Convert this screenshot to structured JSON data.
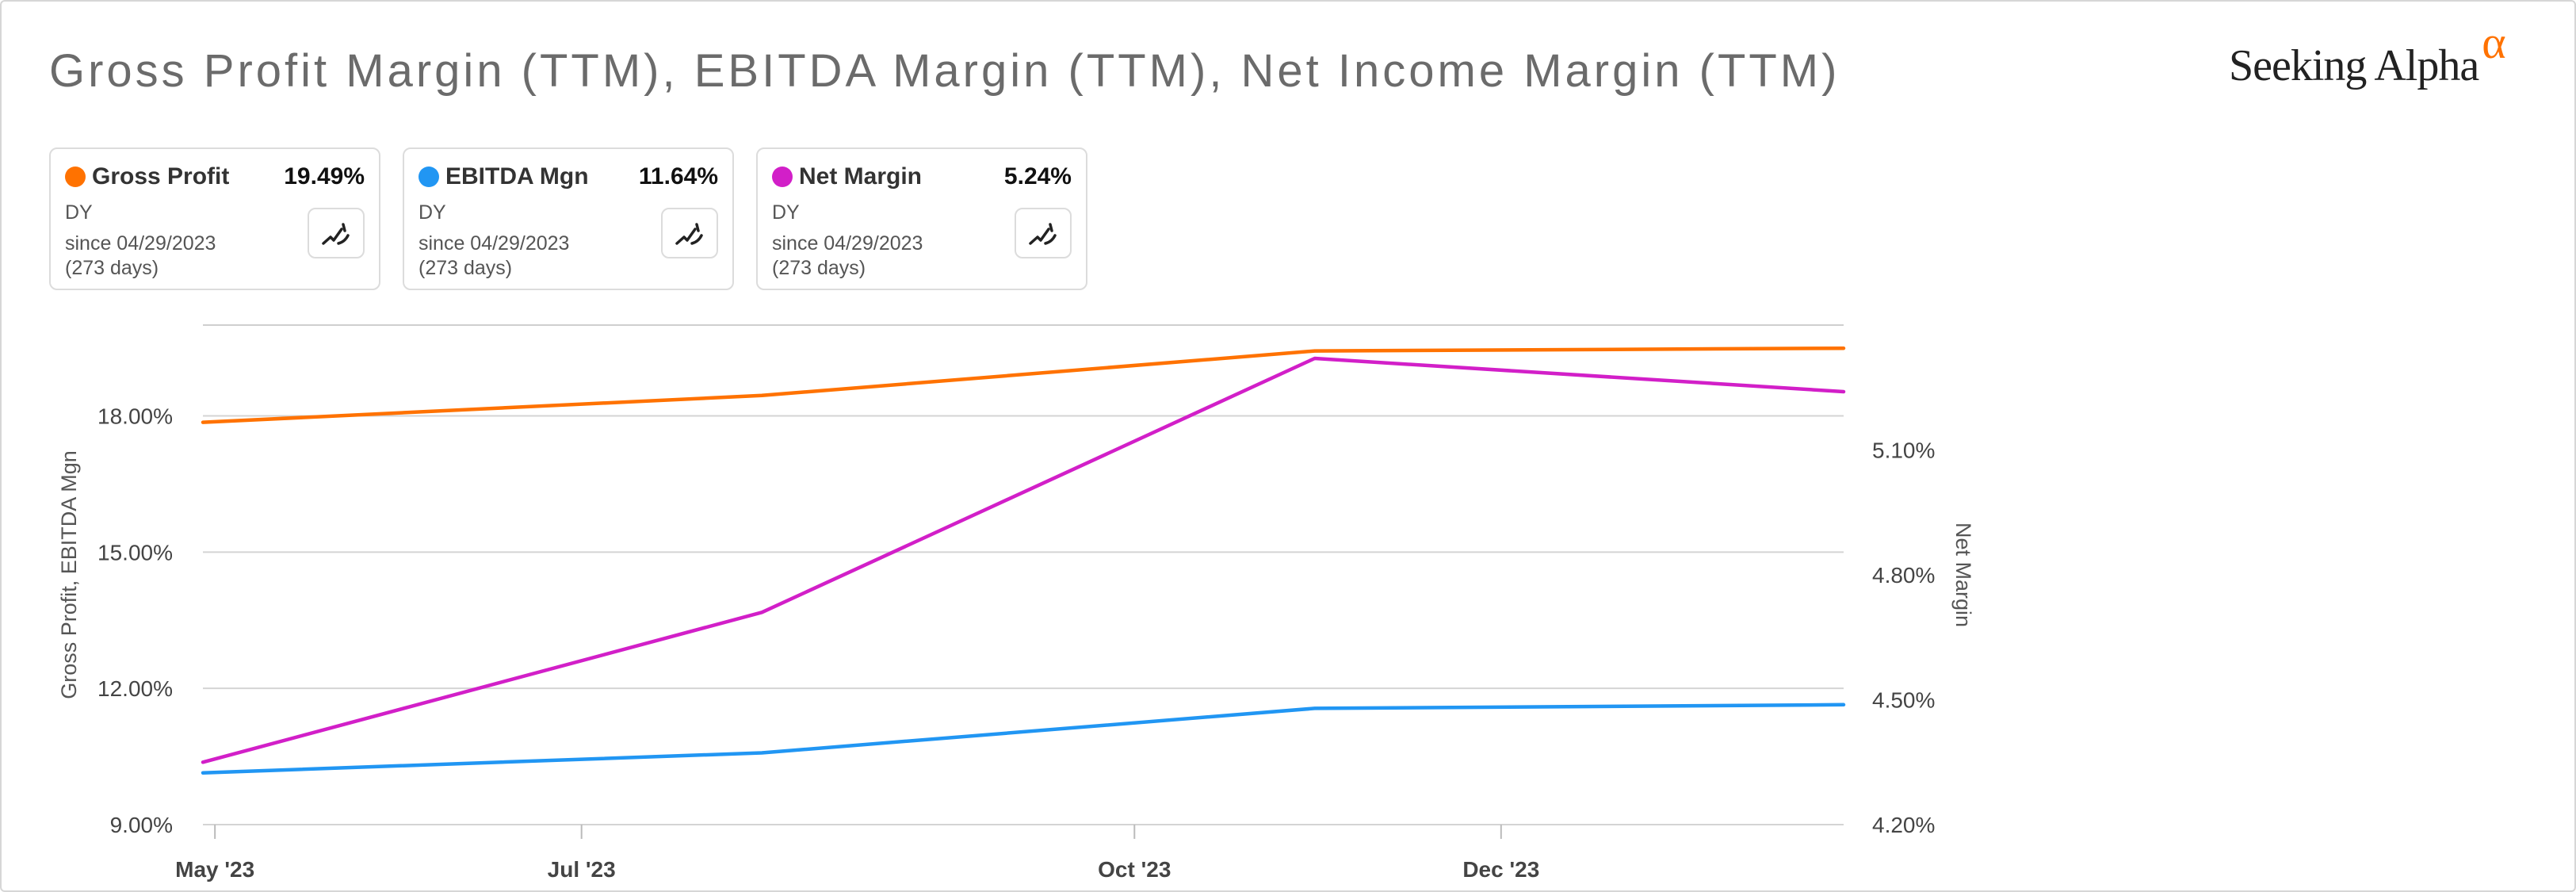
{
  "title": "Gross Profit Margin (TTM), EBITDA Margin (TTM), Net Income Margin (TTM)",
  "brand": {
    "name": "Seeking Alpha",
    "symbol": "α",
    "accent": "#ff7200"
  },
  "cards": [
    {
      "name": "Gross Profit",
      "value": "19.49%",
      "sub": "DY",
      "since": "since 04/29/2023",
      "days": "(273 days)",
      "color": "#ff7200",
      "icon": "trend-chart-icon"
    },
    {
      "name": "EBITDA Mgn",
      "value": "11.64%",
      "sub": "DY",
      "since": "since 04/29/2023",
      "days": "(273 days)",
      "color": "#2196f3",
      "icon": "trend-chart-icon"
    },
    {
      "name": "Net Margin",
      "value": "5.24%",
      "sub": "DY",
      "since": "since 04/29/2023",
      "days": "(273 days)",
      "color": "#d21fc8",
      "icon": "trend-chart-icon"
    }
  ],
  "chart_data": {
    "type": "line",
    "x": [
      "2023-04-29",
      "2023-07-31",
      "2023-10-31",
      "2024-01-27"
    ],
    "x_ticks": [
      {
        "label": "May '23",
        "date": "2023-05-01"
      },
      {
        "label": "Jul '23",
        "date": "2023-07-01"
      },
      {
        "label": "Oct '23",
        "date": "2023-10-01"
      },
      {
        "label": "Dec '23",
        "date": "2023-12-01"
      }
    ],
    "x_range": [
      "2023-04-29",
      "2024-01-27"
    ],
    "y_left": {
      "label": "Gross Profit, EBITDA Mgn",
      "ticks": [
        "9.00%",
        "12.00%",
        "15.00%",
        "18.00%"
      ],
      "range": [
        9.0,
        20.0
      ]
    },
    "y_right": {
      "label": "Net Margin",
      "ticks": [
        "4.20%",
        "4.50%",
        "4.80%",
        "5.10%"
      ],
      "range": [
        4.2,
        5.4
      ]
    },
    "series": [
      {
        "name": "Gross Profit",
        "axis": "left",
        "color": "#ff7200",
        "values": [
          17.86,
          18.45,
          19.43,
          19.49
        ]
      },
      {
        "name": "EBITDA Mgn",
        "axis": "left",
        "color": "#2196f3",
        "values": [
          10.14,
          10.58,
          11.56,
          11.64
        ]
      },
      {
        "name": "Net Margin",
        "axis": "right",
        "color": "#d21fc8",
        "values": [
          4.35,
          4.71,
          5.32,
          5.24
        ]
      }
    ],
    "grid": true,
    "legend": "top-left cards"
  }
}
